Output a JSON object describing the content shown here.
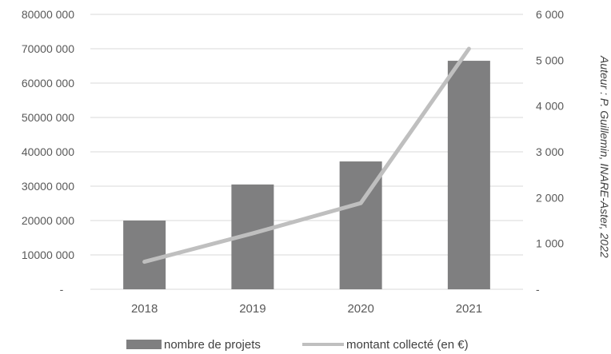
{
  "chart_data": {
    "type": "bar",
    "categories": [
      "2018",
      "2019",
      "2020",
      "2021"
    ],
    "series": [
      {
        "name": "nombre de projets",
        "type": "bar",
        "axis": "left",
        "color": "#7f7f80",
        "values": [
          20000000,
          30500000,
          37200000,
          66500000
        ]
      },
      {
        "name": "montant collecté (en €)",
        "type": "line",
        "axis": "right",
        "color": "#bfbfbf",
        "values": [
          600,
          1220,
          1880,
          5250
        ]
      }
    ],
    "ylim_left": [
      0,
      80000000
    ],
    "ylim_right": [
      0,
      6000
    ],
    "left_ticks": [
      "-",
      "10000 000",
      "20000 000",
      "30000 000",
      "40000 000",
      "50000 000",
      "60000 000",
      "70000 000",
      "80000 000"
    ],
    "right_ticks": [
      "-",
      "1 000",
      "2 000",
      "3 000",
      "4 000",
      "5 000",
      "6 000"
    ],
    "grid": true,
    "legend_position": "bottom"
  },
  "credit": "Auteur : P. Guillemin, INARE-Aster, 2022"
}
